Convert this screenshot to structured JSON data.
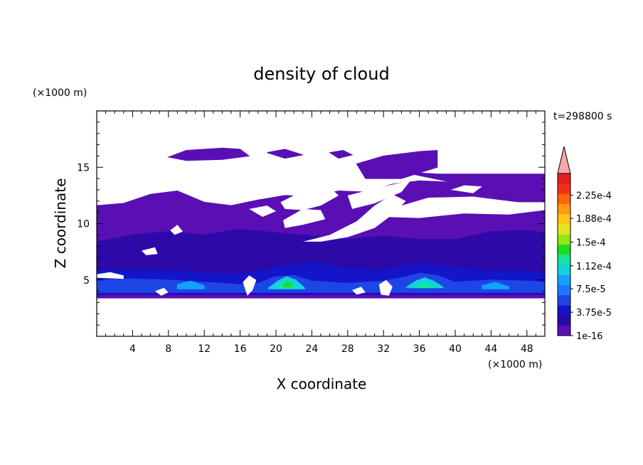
{
  "chart_data": {
    "type": "heatmap",
    "title": "density of cloud",
    "time_label": "t=298800 s",
    "xlabel": "X coordinate",
    "ylabel": "Z coordinate",
    "x_unit": "(×1000 m)",
    "y_unit": "(×1000 m)",
    "xlim": [
      0,
      50
    ],
    "ylim": [
      0,
      20
    ],
    "x_ticks": [
      4,
      8,
      12,
      16,
      20,
      24,
      28,
      32,
      36,
      40,
      44,
      48
    ],
    "y_ticks": [
      5,
      10,
      15
    ],
    "colorbar": {
      "min": 0,
      "max": 0.00026,
      "extend": "max",
      "tick_labels": [
        "2.25e-4",
        "1.88e-4",
        "1.5e-4",
        "1.12e-4",
        "7.5e-5",
        "3.75e-5",
        "1e-16"
      ],
      "tick_values": [
        0.000225,
        0.000188,
        0.00015,
        0.000112,
        7.5e-05,
        3.75e-05,
        0
      ],
      "levels": [
        "#5a0fb4",
        "#2d0aa8",
        "#1414c8",
        "#1e46e6",
        "#1e78ff",
        "#14a0ff",
        "#14d2dc",
        "#14e6a0",
        "#1edc1e",
        "#96e614",
        "#e6e61e",
        "#ffc814",
        "#ff9b0f",
        "#ff640f",
        "#f03214",
        "#e61e1e"
      ],
      "extend_color": "#f4a9a9"
    },
    "cloud_layers": [
      {
        "level": 0,
        "top": [
          [
            0,
            11.6
          ],
          [
            3,
            11.8
          ],
          [
            6,
            12.6
          ],
          [
            9,
            12.9
          ],
          [
            12,
            11.9
          ],
          [
            15,
            11.6
          ],
          [
            18,
            12.1
          ],
          [
            21,
            12.5
          ],
          [
            24,
            12.4
          ],
          [
            27,
            12.9
          ],
          [
            30,
            12.8
          ],
          [
            33,
            13.5
          ],
          [
            36,
            13.8
          ],
          [
            39,
            13.7
          ],
          [
            42,
            13.4
          ],
          [
            45,
            12.9
          ],
          [
            50,
            12.9
          ]
        ],
        "bottom": [
          [
            0,
            3.4
          ],
          [
            50,
            3.4
          ]
        ]
      },
      {
        "level": 0,
        "top": [
          [
            8,
            15.9
          ],
          [
            10,
            16.5
          ],
          [
            14,
            16.7
          ],
          [
            16,
            16.6
          ],
          [
            17,
            16.0
          ],
          [
            14,
            15.7
          ],
          [
            10,
            15.6
          ],
          [
            8,
            15.9
          ]
        ]
      },
      {
        "level": 0,
        "top": [
          [
            19,
            16.3
          ],
          [
            21,
            16.6
          ],
          [
            23,
            16.1
          ],
          [
            21,
            15.8
          ],
          [
            19,
            16.3
          ]
        ]
      },
      {
        "level": 0,
        "top": [
          [
            26,
            16.3
          ],
          [
            27.5,
            16.5
          ],
          [
            28.5,
            16.1
          ],
          [
            27,
            15.8
          ],
          [
            26,
            16.3
          ]
        ]
      },
      {
        "level": 0,
        "top": [
          [
            29,
            15.3
          ],
          [
            32,
            16.0
          ],
          [
            36,
            16.4
          ],
          [
            38,
            16.5
          ],
          [
            38,
            15.0
          ],
          [
            34,
            14.0
          ],
          [
            30,
            14.0
          ],
          [
            29,
            15.3
          ]
        ]
      },
      {
        "level": 0,
        "top": [
          [
            34,
            14.6
          ],
          [
            38,
            14.4
          ],
          [
            42,
            14.4
          ],
          [
            46,
            14.4
          ],
          [
            50,
            14.4
          ],
          [
            50,
            12.9
          ],
          [
            45,
            12.9
          ],
          [
            40,
            13.6
          ],
          [
            34,
            14.6
          ]
        ]
      },
      {
        "level": 1,
        "top": [
          [
            0,
            8.4
          ],
          [
            4,
            9.0
          ],
          [
            8,
            9.3
          ],
          [
            12,
            9.0
          ],
          [
            16,
            9.5
          ],
          [
            20,
            9.2
          ],
          [
            24,
            8.9
          ],
          [
            28,
            8.6
          ],
          [
            32,
            8.9
          ],
          [
            36,
            8.6
          ],
          [
            40,
            8.6
          ],
          [
            44,
            9.3
          ],
          [
            48,
            9.4
          ],
          [
            50,
            9.2
          ]
        ],
        "bottom": [
          [
            0,
            3.7
          ],
          [
            50,
            3.7
          ]
        ]
      },
      {
        "level": 2,
        "top": [
          [
            0,
            5.9
          ],
          [
            4,
            5.9
          ],
          [
            8,
            5.9
          ],
          [
            12,
            5.6
          ],
          [
            16,
            5.5
          ],
          [
            20,
            6.1
          ],
          [
            24,
            6.6
          ],
          [
            28,
            6.0
          ],
          [
            32,
            5.9
          ],
          [
            36,
            6.5
          ],
          [
            40,
            6.1
          ],
          [
            44,
            5.8
          ],
          [
            48,
            5.8
          ],
          [
            50,
            5.6
          ]
        ],
        "bottom": [
          [
            0,
            3.8
          ],
          [
            50,
            3.8
          ]
        ]
      },
      {
        "level": 3,
        "top": [
          [
            0,
            5.0
          ],
          [
            4,
            5.1
          ],
          [
            8,
            5.0
          ],
          [
            12,
            4.8
          ],
          [
            16,
            4.6
          ],
          [
            18,
            4.7
          ],
          [
            20,
            5.3
          ],
          [
            22,
            5.4
          ],
          [
            24,
            4.9
          ],
          [
            28,
            4.7
          ],
          [
            32,
            4.9
          ],
          [
            34,
            5.2
          ],
          [
            36,
            5.6
          ],
          [
            38,
            5.4
          ],
          [
            40,
            4.8
          ],
          [
            44,
            5.0
          ],
          [
            48,
            4.9
          ],
          [
            50,
            4.8
          ]
        ],
        "bottom": [
          [
            0,
            3.9
          ],
          [
            50,
            3.9
          ]
        ]
      },
      {
        "level": 6,
        "top": [
          [
            19.2,
            4.3
          ],
          [
            20.2,
            4.9
          ],
          [
            21.2,
            5.3
          ],
          [
            22.2,
            5.0
          ],
          [
            23.2,
            4.3
          ]
        ],
        "bottom": [
          [
            19.2,
            4.2
          ],
          [
            23.2,
            4.2
          ]
        ]
      },
      {
        "level": 6,
        "top": [
          [
            34.6,
            4.4
          ],
          [
            35.6,
            4.9
          ],
          [
            36.6,
            5.2
          ],
          [
            37.6,
            4.9
          ],
          [
            38.6,
            4.4
          ]
        ],
        "bottom": [
          [
            34.6,
            4.3
          ],
          [
            38.6,
            4.3
          ]
        ]
      },
      {
        "level": 7,
        "top": [
          [
            20.2,
            4.4
          ],
          [
            21.2,
            4.9
          ],
          [
            22.2,
            4.4
          ]
        ],
        "bottom": [
          [
            20.2,
            4.3
          ],
          [
            22.2,
            4.3
          ]
        ]
      },
      {
        "level": 7,
        "top": [
          [
            35.6,
            4.4
          ],
          [
            36.6,
            4.8
          ],
          [
            37.6,
            4.4
          ]
        ],
        "bottom": [
          [
            35.6,
            4.3
          ],
          [
            37.6,
            4.3
          ]
        ]
      },
      {
        "level": 8,
        "top": [
          [
            20.8,
            4.5
          ],
          [
            21.3,
            4.9
          ],
          [
            21.8,
            4.5
          ]
        ],
        "bottom": [
          [
            20.8,
            4.4
          ],
          [
            21.8,
            4.4
          ]
        ]
      },
      {
        "level": 5,
        "top": [
          [
            9,
            4.6
          ],
          [
            10.5,
            4.9
          ],
          [
            12,
            4.5
          ]
        ],
        "bottom": [
          [
            9,
            4.2
          ],
          [
            12,
            4.2
          ]
        ]
      },
      {
        "level": 5,
        "top": [
          [
            43,
            4.5
          ],
          [
            44.5,
            4.8
          ],
          [
            46,
            4.4
          ]
        ],
        "bottom": [
          [
            43,
            4.2
          ],
          [
            46,
            4.2
          ]
        ]
      }
    ],
    "clear_regions": [
      [
        [
          20.5,
          11.9
        ],
        [
          22,
          12.5
        ],
        [
          24,
          12.6
        ],
        [
          26,
          13.2
        ],
        [
          27,
          12.5
        ],
        [
          25,
          11.6
        ],
        [
          23,
          11.2
        ],
        [
          21,
          11.3
        ],
        [
          20.5,
          11.9
        ]
      ],
      [
        [
          17,
          11.3
        ],
        [
          19,
          11.6
        ],
        [
          20,
          11.1
        ],
        [
          18.5,
          10.6
        ],
        [
          17,
          11.3
        ]
      ],
      [
        [
          28,
          12.5
        ],
        [
          32,
          13.3
        ],
        [
          35,
          13.8
        ],
        [
          34,
          12.8
        ],
        [
          31,
          11.8
        ],
        [
          28.5,
          11.3
        ],
        [
          28,
          12.5
        ]
      ],
      [
        [
          20.8,
          10.3
        ],
        [
          23,
          11.3
        ],
        [
          25,
          11.2
        ],
        [
          25.5,
          10.4
        ],
        [
          23,
          9.9
        ],
        [
          21,
          9.6
        ],
        [
          20.8,
          10.3
        ]
      ],
      [
        [
          23,
          8.4
        ],
        [
          26,
          9.0
        ],
        [
          29,
          10.2
        ],
        [
          31,
          11.6
        ],
        [
          33,
          12.6
        ],
        [
          34.5,
          12.0
        ],
        [
          33,
          10.8
        ],
        [
          31,
          9.6
        ],
        [
          28,
          8.8
        ],
        [
          25,
          8.4
        ],
        [
          23,
          8.4
        ]
      ],
      [
        [
          32,
          10.6
        ],
        [
          34,
          11.6
        ],
        [
          37,
          12.3
        ],
        [
          42,
          12.4
        ],
        [
          47,
          11.9
        ],
        [
          50,
          11.9
        ],
        [
          50,
          11.2
        ],
        [
          46,
          10.8
        ],
        [
          41,
          10.9
        ],
        [
          36,
          10.5
        ],
        [
          32,
          10.6
        ]
      ],
      [
        [
          39.5,
          13.0
        ],
        [
          41,
          13.4
        ],
        [
          43,
          13.3
        ],
        [
          42,
          12.7
        ],
        [
          39.5,
          13.0
        ]
      ],
      [
        [
          5,
          7.6
        ],
        [
          6.5,
          7.9
        ],
        [
          6.8,
          7.3
        ],
        [
          5.5,
          7.2
        ],
        [
          5,
          7.6
        ]
      ],
      [
        [
          8.2,
          9.4
        ],
        [
          9,
          9.9
        ],
        [
          9.6,
          9.3
        ],
        [
          8.7,
          9.0
        ],
        [
          8.2,
          9.4
        ]
      ],
      [
        [
          0,
          5.5
        ],
        [
          1.5,
          5.7
        ],
        [
          3,
          5.4
        ],
        [
          3,
          5.1
        ],
        [
          0,
          5.2
        ]
      ],
      [
        [
          16.3,
          4.8
        ],
        [
          17,
          5.4
        ],
        [
          17.8,
          5.0
        ],
        [
          17.4,
          4.1
        ],
        [
          16.8,
          3.6
        ],
        [
          16.3,
          4.8
        ]
      ],
      [
        [
          31.5,
          4.6
        ],
        [
          32.3,
          5.0
        ],
        [
          33,
          4.4
        ],
        [
          32.6,
          3.6
        ],
        [
          31.7,
          3.7
        ],
        [
          31.5,
          4.6
        ]
      ],
      [
        [
          6.5,
          4.0
        ],
        [
          7.5,
          4.3
        ],
        [
          8,
          3.9
        ],
        [
          7.2,
          3.6
        ],
        [
          6.5,
          4.0
        ]
      ],
      [
        [
          28.5,
          4.1
        ],
        [
          29.5,
          4.4
        ],
        [
          30,
          3.9
        ],
        [
          29,
          3.7
        ],
        [
          28.5,
          4.1
        ]
      ]
    ]
  }
}
